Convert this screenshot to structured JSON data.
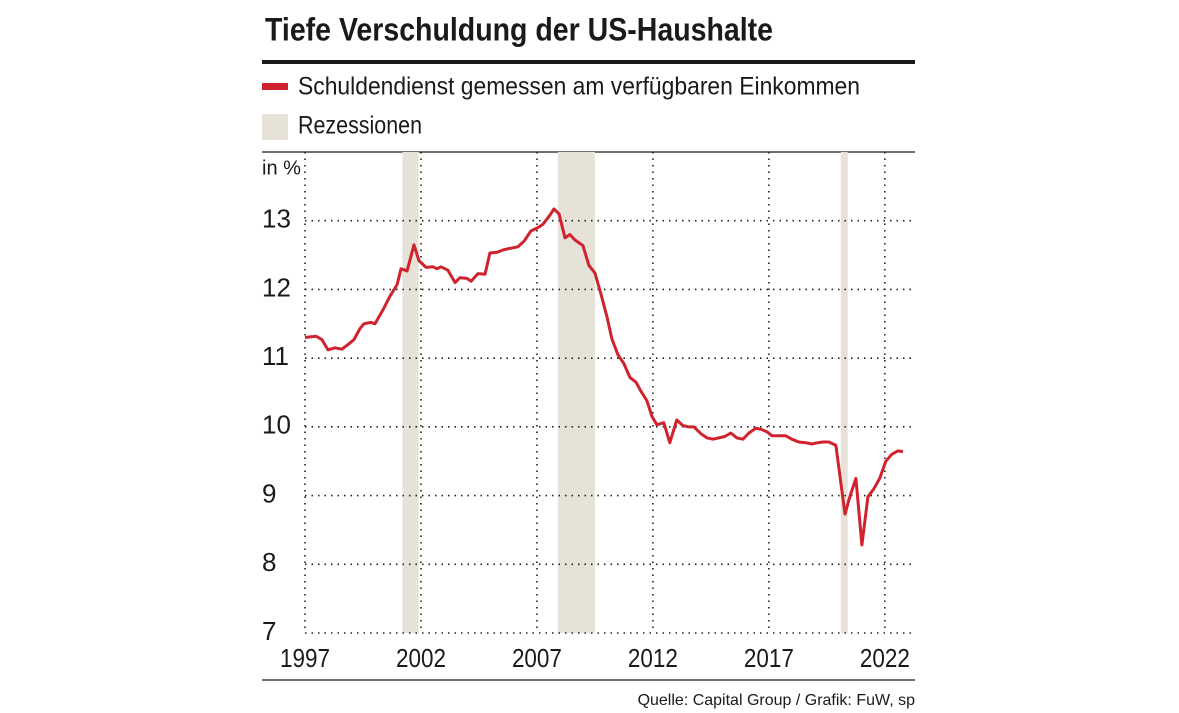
{
  "chart_data": {
    "type": "line",
    "title": "Tiefe Verschuldung der US-Haushalte",
    "y_unit_label": "in %",
    "source": "Quelle: Capital Group / Grafik: FuW, sp",
    "series": [
      {
        "name": "Schuldendienst gemessen am verfügbaren Einkommen",
        "color": "#d1232e",
        "x": [
          1997.0,
          1997.47,
          1997.73,
          1997.99,
          1998.29,
          1998.59,
          1998.94,
          1999.11,
          1999.37,
          1999.54,
          1999.84,
          2000.02,
          2000.36,
          2000.66,
          2000.97,
          2001.14,
          2001.4,
          2001.7,
          2001.91,
          2002.22,
          2002.52,
          2002.69,
          2002.86,
          2003.16,
          2003.47,
          2003.68,
          2003.98,
          2004.16,
          2004.46,
          2004.76,
          2004.97,
          2005.28,
          2005.58,
          2005.88,
          2006.18,
          2006.44,
          2006.74,
          2007.04,
          2007.26,
          2007.56,
          2007.73,
          2007.95,
          2008.21,
          2008.42,
          2008.64,
          2008.98,
          2009.24,
          2009.5,
          2009.76,
          2010.02,
          2010.23,
          2010.49,
          2010.75,
          2011.01,
          2011.27,
          2011.48,
          2011.74,
          2011.96,
          2012.17,
          2012.47,
          2012.73,
          2013.03,
          2013.29,
          2013.55,
          2013.77,
          2014.07,
          2014.33,
          2014.59,
          2014.84,
          2015.1,
          2015.36,
          2015.62,
          2015.88,
          2016.14,
          2016.44,
          2016.7,
          2016.91,
          2017.13,
          2017.47,
          2017.73,
          2017.99,
          2018.29,
          2018.59,
          2018.85,
          2019.11,
          2019.33,
          2019.59,
          2019.89,
          2020.28,
          2020.49,
          2020.75,
          2021.01,
          2021.27,
          2021.53,
          2021.78,
          2022.04,
          2022.3,
          2022.56,
          2022.78
        ],
        "values": [
          11.3,
          11.32,
          11.27,
          11.12,
          11.15,
          11.13,
          11.22,
          11.27,
          11.43,
          11.5,
          11.52,
          11.5,
          11.7,
          11.9,
          12.07,
          12.3,
          12.27,
          12.65,
          12.42,
          12.32,
          12.33,
          12.3,
          12.33,
          12.28,
          12.1,
          12.17,
          12.16,
          12.12,
          12.23,
          12.22,
          12.53,
          12.54,
          12.58,
          12.6,
          12.62,
          12.7,
          12.85,
          12.9,
          12.95,
          13.08,
          13.17,
          13.1,
          12.75,
          12.8,
          12.72,
          12.64,
          12.35,
          12.24,
          11.93,
          11.6,
          11.28,
          11.05,
          10.92,
          10.72,
          10.65,
          10.52,
          10.38,
          10.15,
          10.03,
          10.06,
          9.77,
          10.1,
          10.02,
          10.0,
          10.0,
          9.9,
          9.84,
          9.82,
          9.84,
          9.86,
          9.91,
          9.84,
          9.82,
          9.91,
          9.98,
          9.96,
          9.93,
          9.87,
          9.87,
          9.87,
          9.82,
          9.78,
          9.77,
          9.75,
          9.77,
          9.78,
          9.78,
          9.73,
          8.73,
          8.98,
          9.25,
          8.28,
          8.98,
          9.1,
          9.25,
          9.5,
          9.6,
          9.65,
          9.64
        ]
      }
    ],
    "recession_label": "Rezessionen",
    "recession_color": "#e6e2d8",
    "recessions": [
      [
        2001.2,
        2001.9
      ],
      [
        2007.9,
        2009.5
      ],
      [
        2020.1,
        2020.4
      ]
    ],
    "xlim": [
      1997,
      2023.3
    ],
    "xticks": [
      1997,
      2002,
      2007,
      2012,
      2017,
      2022
    ],
    "ylim": [
      7,
      14
    ],
    "yticks": [
      7,
      8,
      9,
      10,
      11,
      12,
      13
    ],
    "grid": true
  }
}
